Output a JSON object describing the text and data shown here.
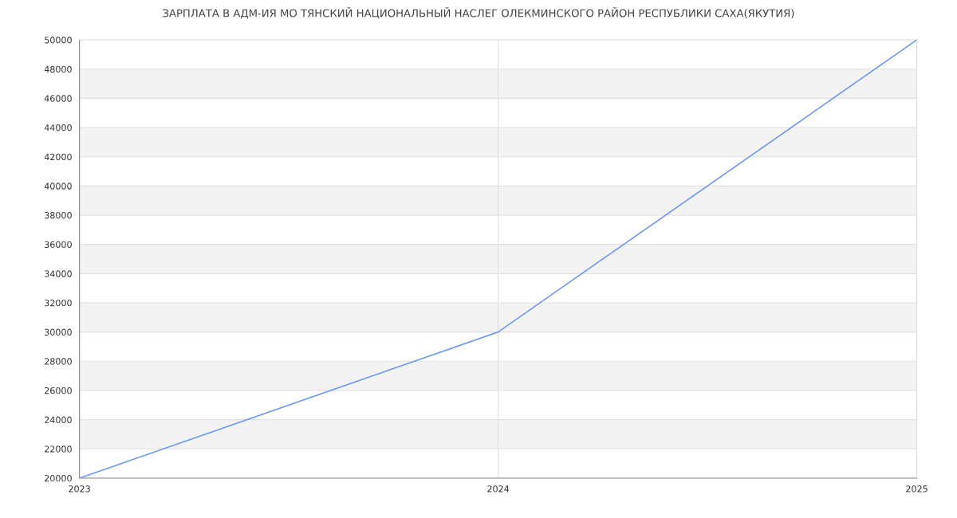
{
  "chart_data": {
    "type": "line",
    "title": "ЗАРПЛАТА В АДМ-ИЯ МО ТЯНСКИЙ НАЦИОНАЛЬНЫЙ НАСЛЕГ ОЛЕКМИНСКОГО РАЙОН РЕСПУБЛИКИ САХА(ЯКУТИЯ)",
    "x": [
      2023,
      2024,
      2025
    ],
    "series": [
      {
        "color": "#7199f0",
        "values": [
          20000,
          30000,
          50000
        ]
      }
    ],
    "xlim": [
      2023,
      2025
    ],
    "xticks": [
      2023,
      2024,
      2025
    ],
    "ylim": [
      20000,
      50000
    ],
    "yticks": [
      20000,
      22000,
      24000,
      26000,
      28000,
      30000,
      32000,
      34000,
      36000,
      38000,
      40000,
      42000,
      44000,
      46000,
      48000,
      50000
    ],
    "grid": true,
    "marker": "none",
    "line_style": "solid"
  }
}
